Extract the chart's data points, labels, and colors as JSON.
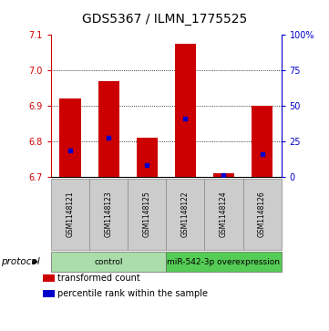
{
  "title": "GDS5367 / ILMN_1775525",
  "samples": [
    "GSM1148121",
    "GSM1148123",
    "GSM1148125",
    "GSM1148122",
    "GSM1148124",
    "GSM1148126"
  ],
  "bar_bottoms": [
    6.7,
    6.7,
    6.7,
    6.7,
    6.7,
    6.7
  ],
  "bar_tops": [
    6.92,
    6.97,
    6.81,
    7.075,
    6.71,
    6.9
  ],
  "blue_dots": [
    6.775,
    6.81,
    6.735,
    6.865,
    6.705,
    6.765
  ],
  "ylim": [
    6.7,
    7.1
  ],
  "yticks_left": [
    6.7,
    6.8,
    6.9,
    7.0,
    7.1
  ],
  "yticks_right_vals": [
    0,
    25,
    50,
    75,
    100
  ],
  "yticks_right_labels": [
    "0",
    "25",
    "50",
    "75",
    "100%"
  ],
  "bar_color": "#cc0000",
  "dot_color": "#0000cc",
  "bar_width": 0.55,
  "groups": [
    {
      "label": "control",
      "start": 0,
      "end": 3,
      "color": "#aaddaa"
    },
    {
      "label": "miR-542-3p overexpression",
      "start": 3,
      "end": 6,
      "color": "#55cc55"
    }
  ],
  "protocol_label": "protocol",
  "legend_items": [
    {
      "color": "#cc0000",
      "label": "transformed count"
    },
    {
      "color": "#0000cc",
      "label": "percentile rank within the sample"
    }
  ],
  "title_fontsize": 10,
  "tick_fontsize": 7,
  "sample_fontsize": 5.5,
  "group_fontsize": 6.5,
  "legend_fontsize": 7,
  "left_tick_color": "#cc0000",
  "right_tick_color": "#0000cc",
  "bg_color": "#ffffff"
}
